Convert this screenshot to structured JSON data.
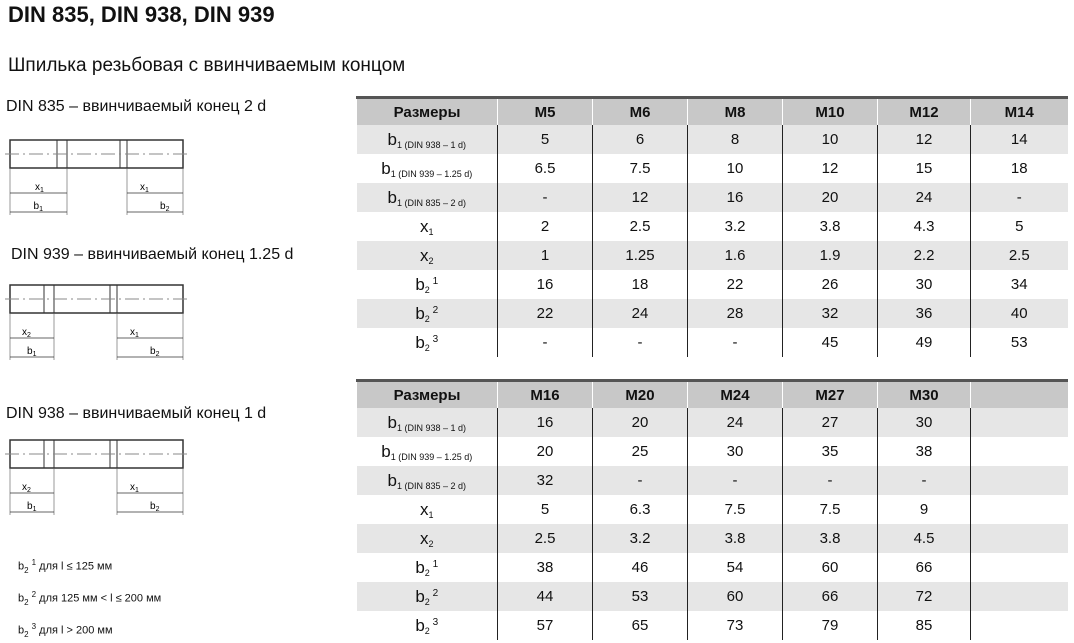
{
  "title": "DIN 835, DIN 938, DIN 939",
  "subtitle": "Шпилька резьбовая с ввинчиваемым концом",
  "figures": [
    {
      "caption": "DIN 835 – ввинчиваемый конец 2 d",
      "labels": [
        "x1",
        "x1",
        "b1",
        "b2"
      ]
    },
    {
      "caption": "DIN 939 – ввинчиваемый конец 1.25 d",
      "labels": [
        "x2",
        "x1",
        "b1",
        "b2"
      ]
    },
    {
      "caption": "DIN 938 – ввинчиваемый конец 1 d",
      "labels": [
        "x2",
        "x1",
        "b1",
        "b2"
      ]
    }
  ],
  "notes": [
    {
      "sym": "b",
      "sub": "2",
      "sup": "1",
      "text": " для l ≤ 125 мм"
    },
    {
      "sym": "b",
      "sub": "2",
      "sup": "2",
      "text": " для 125 мм < l ≤ 200 мм"
    },
    {
      "sym": "b",
      "sub": "2",
      "sup": "3",
      "text": " для l > 200 мм"
    }
  ],
  "row_labels": [
    {
      "sym": "b",
      "sub": "1 (DIN 938 – 1 d)",
      "sup": ""
    },
    {
      "sym": "b",
      "sub": "1 (DIN 939 – 1.25 d)",
      "sup": ""
    },
    {
      "sym": "b",
      "sub": "1 (DIN 835 – 2 d)",
      "sup": ""
    },
    {
      "sym": "x",
      "sub": "1",
      "sup": ""
    },
    {
      "sym": "x",
      "sub": "2",
      "sup": ""
    },
    {
      "sym": "b",
      "sub": "2",
      "sup": " 1"
    },
    {
      "sym": "b",
      "sub": "2",
      "sup": " 2"
    },
    {
      "sym": "b",
      "sub": "2",
      "sup": " 3"
    }
  ],
  "tables": [
    {
      "header": [
        "Размеры",
        "M5",
        "M6",
        "M8",
        "M10",
        "M12",
        "M14"
      ],
      "rows": [
        [
          "5",
          "6",
          "8",
          "10",
          "12",
          "14"
        ],
        [
          "6.5",
          "7.5",
          "10",
          "12",
          "15",
          "18"
        ],
        [
          "-",
          "12",
          "16",
          "20",
          "24",
          "-"
        ],
        [
          "2",
          "2.5",
          "3.2",
          "3.8",
          "4.3",
          "5"
        ],
        [
          "1",
          "1.25",
          "1.6",
          "1.9",
          "2.2",
          "2.5"
        ],
        [
          "16",
          "18",
          "22",
          "26",
          "30",
          "34"
        ],
        [
          "22",
          "24",
          "28",
          "32",
          "36",
          "40"
        ],
        [
          "-",
          "-",
          "-",
          "45",
          "49",
          "53"
        ]
      ]
    },
    {
      "header": [
        "Размеры",
        "M16",
        "M20",
        "M24",
        "M27",
        "M30",
        ""
      ],
      "rows": [
        [
          "16",
          "20",
          "24",
          "27",
          "30",
          ""
        ],
        [
          "20",
          "25",
          "30",
          "35",
          "38",
          ""
        ],
        [
          "32",
          "-",
          "-",
          "-",
          "-",
          ""
        ],
        [
          "5",
          "6.3",
          "7.5",
          "7.5",
          "9",
          ""
        ],
        [
          "2.5",
          "3.2",
          "3.8",
          "3.8",
          "4.5",
          ""
        ],
        [
          "38",
          "46",
          "54",
          "60",
          "66",
          ""
        ],
        [
          "44",
          "53",
          "60",
          "66",
          "72",
          ""
        ],
        [
          "57",
          "65",
          "73",
          "79",
          "85",
          ""
        ]
      ]
    }
  ]
}
